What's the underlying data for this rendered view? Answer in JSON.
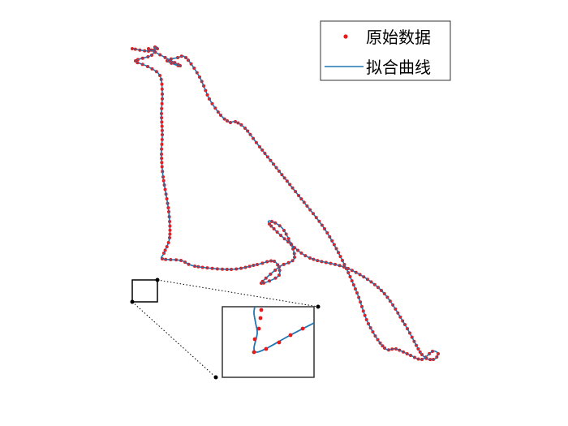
{
  "chart_data": {
    "type": "scatter",
    "title": "",
    "xlabel": "",
    "ylabel": "",
    "axes_visible": false,
    "grid": false,
    "legend_placement": "top-right",
    "colors": {
      "points": "#e41a1c",
      "curve": "#1f77b4",
      "frame": "#333333"
    },
    "series": [
      {
        "name": "原始数据",
        "kind": "points",
        "x": [
          29,
          68,
          52,
          65,
          75,
          92,
          104,
          118,
          126,
          130,
          136,
          148,
          166,
          190,
          214,
          246,
          268,
          286,
          300,
          320,
          334,
          352,
          366,
          379,
          386,
          380,
          366,
          345,
          316,
          275,
          228,
          201,
          178,
          181,
          196,
          209,
          190,
          168,
          190,
          184,
          163,
          131,
          86,
          69,
          46,
          48,
          55,
          54,
          47,
          45,
          46,
          45,
          46,
          43,
          28,
          13,
          33,
          37,
          40,
          29,
          9
        ],
        "y": [
          60,
          81,
          75,
          71,
          71,
          95,
          122,
          142,
          149,
          151,
          150,
          158,
          181,
          211,
          241,
          282,
          321,
          361,
          399,
          429,
          430,
          438,
          443,
          433,
          436,
          443,
          437,
          400,
          358,
          331,
          318,
          298,
          276,
          273,
          284,
          317,
          329,
          349,
          339,
          322,
          326,
          332,
          328,
          321,
          319,
          312,
          293,
          261,
          218,
          190,
          166,
          140,
          116,
          93,
          82,
          75,
          68,
          58,
          60,
          63,
          60
        ]
      },
      {
        "name": "拟合曲线",
        "kind": "line"
      }
    ],
    "inset": {
      "x_range": [
        5,
        36
      ],
      "y_range": [
        345,
        372
      ],
      "x": [
        11,
        14,
        17,
        20
      ],
      "y": [
        354,
        358,
        362,
        365
      ]
    }
  }
}
